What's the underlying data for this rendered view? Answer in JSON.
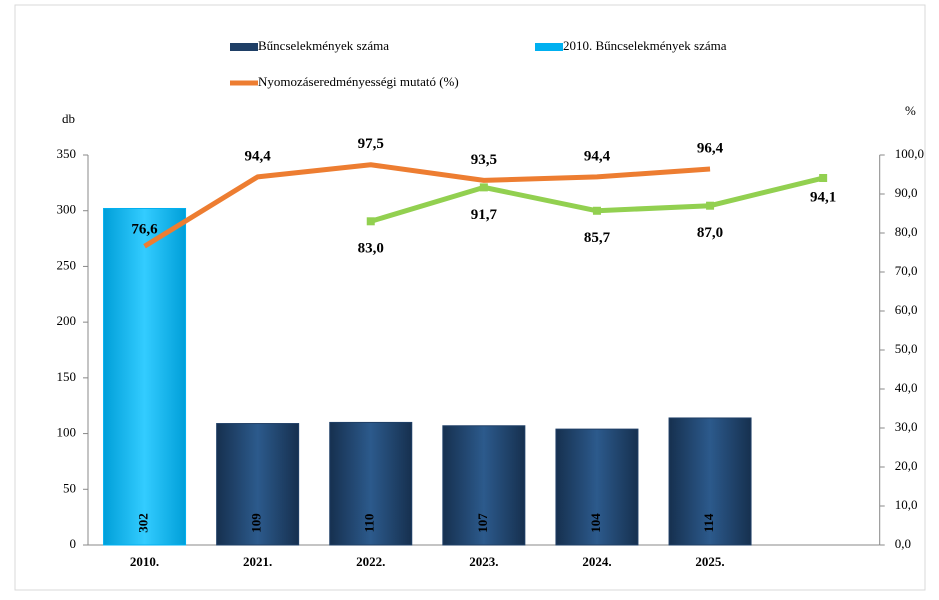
{
  "chart_data": {
    "type": "bar",
    "categories": [
      "2010.",
      "2021.",
      "2022.",
      "2023.",
      "2024.",
      "2025.",
      null
    ],
    "y_label": "db",
    "y2_label": "%",
    "ylim": [
      0,
      350
    ],
    "yticks": [
      0,
      50,
      100,
      150,
      200,
      250,
      300,
      350
    ],
    "y2lim": [
      0,
      100
    ],
    "y2ticks": [
      {
        "value": 0,
        "label": "0,0"
      },
      {
        "value": 10,
        "label": "10,0"
      },
      {
        "value": 20,
        "label": "20,0"
      },
      {
        "value": 30,
        "label": "30,0"
      },
      {
        "value": 40,
        "label": "40,0"
      },
      {
        "value": 50,
        "label": "50,0"
      },
      {
        "value": 60,
        "label": "60,0"
      },
      {
        "value": 70,
        "label": "70,0"
      },
      {
        "value": 80,
        "label": "80,0"
      },
      {
        "value": 90,
        "label": "90,0"
      },
      {
        "value": 100,
        "label": "100,0"
      }
    ],
    "series": [
      {
        "name": "Bűncselekmények száma",
        "type": "bar",
        "color": "#1f3f66",
        "values": [
          null,
          109,
          110,
          107,
          104,
          114,
          null
        ]
      },
      {
        "name": "2010. Bűncselekmények száma",
        "type": "bar",
        "color": "#00b0f0",
        "values": [
          302,
          null,
          null,
          null,
          null,
          null,
          null
        ]
      },
      {
        "name": "Nyomozáseredményességi mutató (%)",
        "type": "line",
        "axis": "y2",
        "color": "#ed7d31",
        "values": [
          76.6,
          94.4,
          97.5,
          93.5,
          94.4,
          96.4,
          null
        ],
        "value_labels": [
          "76,6",
          "94,4",
          "97,5",
          "93,5",
          "94,4",
          "96,4",
          null
        ]
      },
      {
        "type": "line",
        "axis": "y2",
        "color": "#92d050",
        "values": [
          null,
          null,
          83.0,
          91.7,
          85.7,
          87.0,
          94.1
        ],
        "value_labels": [
          null,
          null,
          "83,0",
          "91,7",
          "85,7",
          "87,0",
          "94,1"
        ]
      }
    ]
  }
}
